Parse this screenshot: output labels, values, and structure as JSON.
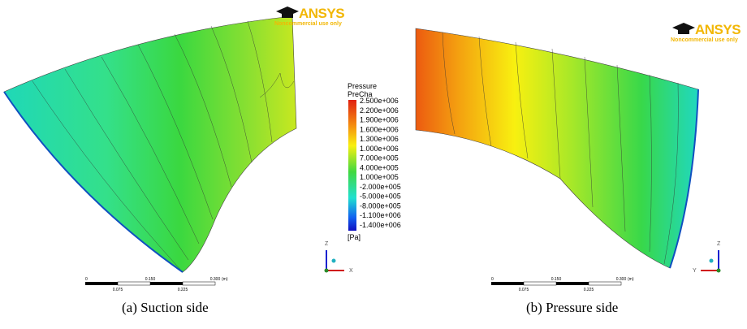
{
  "panels": [
    {
      "logo": {
        "brand": "ANSYS",
        "note": "Noncommercial use only"
      },
      "scale_bar": {
        "ticks_top": [
          "0",
          "0.150",
          "0.300"
        ],
        "unit": "(m)",
        "ticks_bottom": [
          "0.075",
          "0.225"
        ]
      },
      "axes": [
        "Z",
        "X"
      ],
      "caption": "(a) Suction side"
    },
    {
      "logo": {
        "brand": "ANSYS",
        "note": "Noncommercial use only"
      },
      "scale_bar": {
        "ticks_top": [
          "0",
          "0.150",
          "0.300"
        ],
        "unit": "(m)",
        "ticks_bottom": [
          "0.075",
          "0.225"
        ]
      },
      "axes": [
        "Z",
        "Y"
      ],
      "caption": "(b) Pressure side"
    }
  ],
  "legend": {
    "title": "Pressure",
    "subtitle": "PreCha",
    "labels": [
      "2.500e+006",
      "2.200e+006",
      "1.900e+006",
      "1.600e+006",
      "1.300e+006",
      "1.000e+006",
      "7.000e+005",
      "4.000e+005",
      "1.000e+005",
      "-2.000e+005",
      "-5.000e+005",
      "-8.000e+005",
      "-1.100e+006",
      "-1.400e+006"
    ],
    "unit": "[Pa]"
  }
}
